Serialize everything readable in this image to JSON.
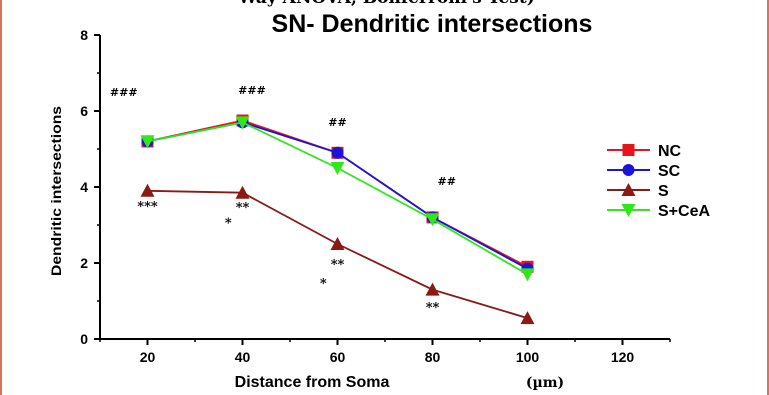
{
  "chart_data": {
    "type": "line",
    "clipped_heading": "Way ANOVA, Bonferroni's Test)",
    "title": "SN- Dendritic intersections",
    "xlabel": "Distance from Soma",
    "xunit": "(µm)",
    "ylabel": "Dendritic intersections",
    "x": [
      20,
      40,
      60,
      80,
      100
    ],
    "xticks": [
      20,
      40,
      60,
      80,
      100,
      120
    ],
    "yticks": [
      0,
      2,
      4,
      6,
      8
    ],
    "xlim": [
      10,
      130
    ],
    "ylim": [
      0,
      8
    ],
    "legend_position": "right",
    "series": [
      {
        "name": "NC",
        "color": "#e8141c",
        "marker": "square",
        "values": [
          5.2,
          5.75,
          4.9,
          3.2,
          1.9
        ]
      },
      {
        "name": "SC",
        "color": "#1a14d8",
        "marker": "circle",
        "values": [
          5.2,
          5.7,
          4.9,
          3.2,
          1.85
        ]
      },
      {
        "name": "S",
        "color": "#8a1a14",
        "marker": "triangle-up",
        "values": [
          3.9,
          3.85,
          2.5,
          1.3,
          0.55
        ]
      },
      {
        "name": "S+CeA",
        "color": "#2ee81a",
        "marker": "triangle-down",
        "values": [
          5.2,
          5.7,
          4.5,
          3.15,
          1.7
        ]
      }
    ],
    "annotations": [
      {
        "text": "###",
        "x": 15,
        "y": 6.4
      },
      {
        "text": "###",
        "x": 42,
        "y": 6.45
      },
      {
        "text": "##",
        "x": 60,
        "y": 5.6
      },
      {
        "text": "##",
        "x": 83,
        "y": 4.05
      },
      {
        "text": "***",
        "x": 20,
        "y": 3.38
      },
      {
        "text": "**",
        "x": 40,
        "y": 3.35
      },
      {
        "text": "*",
        "x": 37,
        "y": 2.95
      },
      {
        "text": "**",
        "x": 60,
        "y": 1.85
      },
      {
        "text": "*",
        "x": 57,
        "y": 1.35
      },
      {
        "text": "**",
        "x": 80,
        "y": 0.72
      }
    ]
  }
}
